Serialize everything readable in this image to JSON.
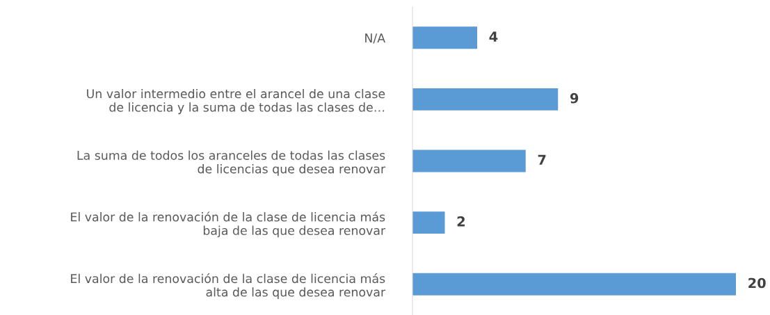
{
  "chart_data": {
    "type": "bar",
    "orientation": "horizontal",
    "categories": [
      "N/A",
      "Un valor intermedio entre el arancel de una clase\nde licencia y la suma de todas las clases de…",
      "La suma de todos los aranceles de todas las clases\nde licencias que desea renovar",
      "El valor de la renovación de la clase de licencia más\nbaja de las que desea renovar",
      "El valor de la renovación de la clase de licencia más\nalta de las que desea renovar"
    ],
    "values": [
      4,
      9,
      7,
      2,
      20
    ],
    "color": "#5b9bd5",
    "xlim": [
      0,
      20
    ],
    "data_labels": true,
    "tick_labels": "y",
    "legend": false
  }
}
